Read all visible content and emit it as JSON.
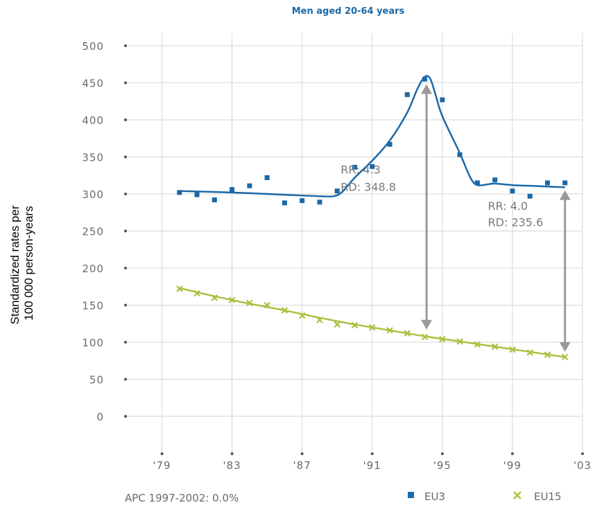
{
  "chart_data": {
    "type": "line",
    "title": "Men aged 20-64 years",
    "ylabel_lines": [
      "Standardized rates per",
      "100 000 person-years"
    ],
    "xlim": [
      1979,
      2003
    ],
    "ylim": [
      0,
      500
    ],
    "x_ticks": [
      1979,
      1983,
      1987,
      1991,
      1995,
      1999,
      2003
    ],
    "x_tick_labels": [
      "'79",
      "'83",
      "'87",
      "'91",
      "'95",
      "'99",
      "'03"
    ],
    "y_ticks": [
      0,
      50,
      100,
      150,
      200,
      250,
      300,
      350,
      400,
      450,
      500
    ],
    "y_tick_labels": [
      "0",
      "50",
      "100",
      "150",
      "200",
      "250",
      "300",
      "350",
      "400",
      "450",
      "500"
    ],
    "grid": true,
    "legend_position": "bottom-right",
    "colors": {
      "eu3": "#1b68a8",
      "eu15": "#a9c23f",
      "arrow": "#9a9a9a"
    },
    "series": [
      {
        "name": "EU3",
        "marker": "square",
        "points": [
          [
            1980,
            302
          ],
          [
            1981,
            299
          ],
          [
            1982,
            292
          ],
          [
            1983,
            306
          ],
          [
            1984,
            311
          ],
          [
            1985,
            322
          ],
          [
            1986,
            288
          ],
          [
            1987,
            291
          ],
          [
            1988,
            289
          ],
          [
            1989,
            304
          ],
          [
            1990,
            336
          ],
          [
            1991,
            337
          ],
          [
            1992,
            367
          ],
          [
            1993,
            434
          ],
          [
            1994,
            455
          ],
          [
            1995,
            427
          ],
          [
            1996,
            353
          ],
          [
            1997,
            315
          ],
          [
            1998,
            319
          ],
          [
            1999,
            304
          ],
          [
            2000,
            297
          ],
          [
            2001,
            315
          ],
          [
            2002,
            315
          ]
        ],
        "fit": [
          [
            1980,
            304
          ],
          [
            1983,
            302
          ],
          [
            1986,
            299
          ],
          [
            1988,
            297
          ],
          [
            1988.8,
            297
          ],
          [
            1989.3,
            303
          ],
          [
            1990,
            322
          ],
          [
            1991,
            345
          ],
          [
            1992,
            372
          ],
          [
            1993,
            410
          ],
          [
            1993.6,
            443
          ],
          [
            1994,
            458
          ],
          [
            1994.3,
            456
          ],
          [
            1994.6,
            435
          ],
          [
            1995,
            405
          ],
          [
            1996,
            355
          ],
          [
            1996.6,
            322
          ],
          [
            1997,
            312
          ],
          [
            1997.6,
            313
          ],
          [
            1998,
            314
          ],
          [
            1999,
            312
          ],
          [
            2000,
            311
          ],
          [
            2001,
            310
          ],
          [
            2002,
            309
          ]
        ]
      },
      {
        "name": "EU15",
        "marker": "x",
        "points": [
          [
            1980,
            172
          ],
          [
            1981,
            166
          ],
          [
            1982,
            160
          ],
          [
            1983,
            157
          ],
          [
            1984,
            153
          ],
          [
            1985,
            150
          ],
          [
            1986,
            143
          ],
          [
            1987,
            136
          ],
          [
            1988,
            130
          ],
          [
            1989,
            124
          ],
          [
            1990,
            123
          ],
          [
            1991,
            120
          ],
          [
            1992,
            116
          ],
          [
            1993,
            112
          ],
          [
            1994,
            107
          ],
          [
            1995,
            104
          ],
          [
            1996,
            101
          ],
          [
            1997,
            97
          ],
          [
            1998,
            94
          ],
          [
            1999,
            90
          ],
          [
            2000,
            86
          ],
          [
            2001,
            83
          ],
          [
            2002,
            80
          ]
        ],
        "fit": [
          [
            1980,
            173
          ],
          [
            1982,
            162
          ],
          [
            1984,
            152
          ],
          [
            1986,
            143
          ],
          [
            1988,
            133
          ],
          [
            1990,
            124
          ],
          [
            1992,
            116
          ],
          [
            1994,
            108
          ],
          [
            1996,
            101
          ],
          [
            1998,
            94
          ],
          [
            2000,
            87
          ],
          [
            2002,
            80
          ]
        ]
      }
    ],
    "annotations": [
      {
        "x": 1994.1,
        "y_top": 448,
        "y_bottom": 117,
        "lines": [
          "RR: 4.3",
          "RD: 348.8"
        ],
        "label_x": 1989.2,
        "label_y": [
          333,
          310
        ]
      },
      {
        "x": 2002,
        "y_top": 305,
        "y_bottom": 87,
        "lines": [
          "RR: 4.0",
          "RD: 235.6"
        ],
        "label_x": 1997.6,
        "label_y": [
          284,
          262
        ]
      }
    ],
    "footnote": "APC 1997-2002: 0.0%"
  }
}
